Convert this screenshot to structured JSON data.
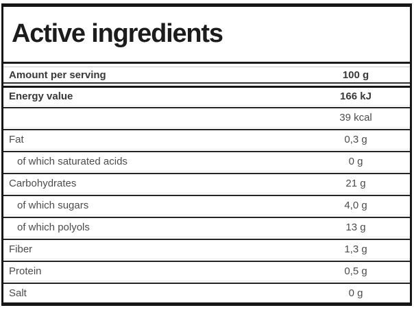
{
  "title": "Active ingredients",
  "colors": {
    "outer_border": "#161616",
    "row_separator": "#252525",
    "hairline": "#ededed",
    "faint_top_line": "#c6c6c6",
    "bold_text": "#383838",
    "regular_text": "#4c4c4c",
    "title_text": "#1c1c1c"
  },
  "header_row": {
    "label": "Amount per serving",
    "value": "100 g"
  },
  "energy_row": {
    "label": "Energy value",
    "value": "166 kJ"
  },
  "rows": [
    {
      "label": "",
      "value": "39 kcal"
    },
    {
      "label": "Fat",
      "value": "0,3 g"
    },
    {
      "label": "of which saturated acids",
      "value": "0 g"
    },
    {
      "label": "Carbohydrates",
      "value": "21 g"
    },
    {
      "label": "of which sugars",
      "value": "4,0 g"
    },
    {
      "label": "of which polyols",
      "value": "13 g"
    },
    {
      "label": "Fiber",
      "value": "1,3 g"
    },
    {
      "label": "Protein",
      "value": "0,5 g"
    },
    {
      "label": "Salt",
      "value": "0 g"
    }
  ]
}
